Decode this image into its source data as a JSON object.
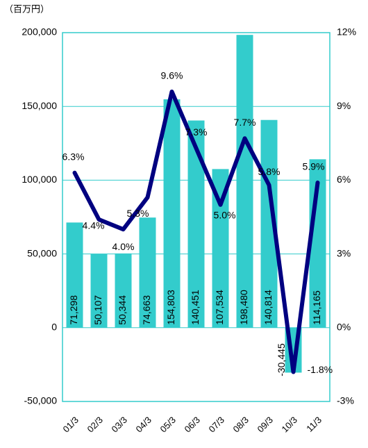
{
  "chart_data": {
    "type": "bar_line",
    "y_label": "（百万円）",
    "categories": [
      "01/3",
      "02/3",
      "03/3",
      "04/3",
      "05/3",
      "06/3",
      "07/3",
      "08/3",
      "09/3",
      "10/3",
      "11/3"
    ],
    "series": [
      {
        "type": "bar",
        "color": "#33cccc",
        "values": [
          71298,
          50107,
          50344,
          74663,
          154803,
          140451,
          107534,
          198480,
          140814,
          -30445,
          114165
        ],
        "value_labels": [
          "71,298",
          "50,107",
          "50,344",
          "74,663",
          "154,803",
          "140,451",
          "107,534",
          "198,480",
          "140,814",
          "-30,445",
          "114,165"
        ]
      },
      {
        "type": "line",
        "axis": "y2",
        "color": "#000080",
        "values": [
          6.3,
          4.4,
          4.0,
          5.3,
          9.6,
          7.3,
          5.0,
          7.7,
          5.8,
          -1.8,
          5.9
        ],
        "value_labels": [
          "6.3%",
          "4.4%",
          "4.0%",
          "5.3%",
          "9.6%",
          "7.3%",
          "5.0%",
          "7.7%",
          "5.8%",
          "-1.8%",
          "5.9%"
        ]
      }
    ],
    "ylim": [
      -50000,
      200000
    ],
    "yticks": [
      {
        "value": -50000,
        "label": "-50,000"
      },
      0,
      {
        "value": 50000,
        "label": "50,000"
      },
      {
        "value": 100000,
        "label": "100,000"
      },
      {
        "value": 150000,
        "label": "150,000"
      },
      {
        "value": 200000,
        "label": "200,000"
      }
    ],
    "y2lim": [
      -3,
      12
    ],
    "y2ticks": [
      {
        "value": -3,
        "label": "-3%"
      },
      {
        "value": 0,
        "label": "0%"
      },
      {
        "value": 3,
        "label": "3%"
      },
      {
        "value": 6,
        "label": "6%"
      },
      {
        "value": 9,
        "label": "9%"
      },
      {
        "value": 12,
        "label": "12%"
      }
    ],
    "grid": true,
    "grid_color": "#33cccc",
    "negative_color": "#ff0000"
  }
}
